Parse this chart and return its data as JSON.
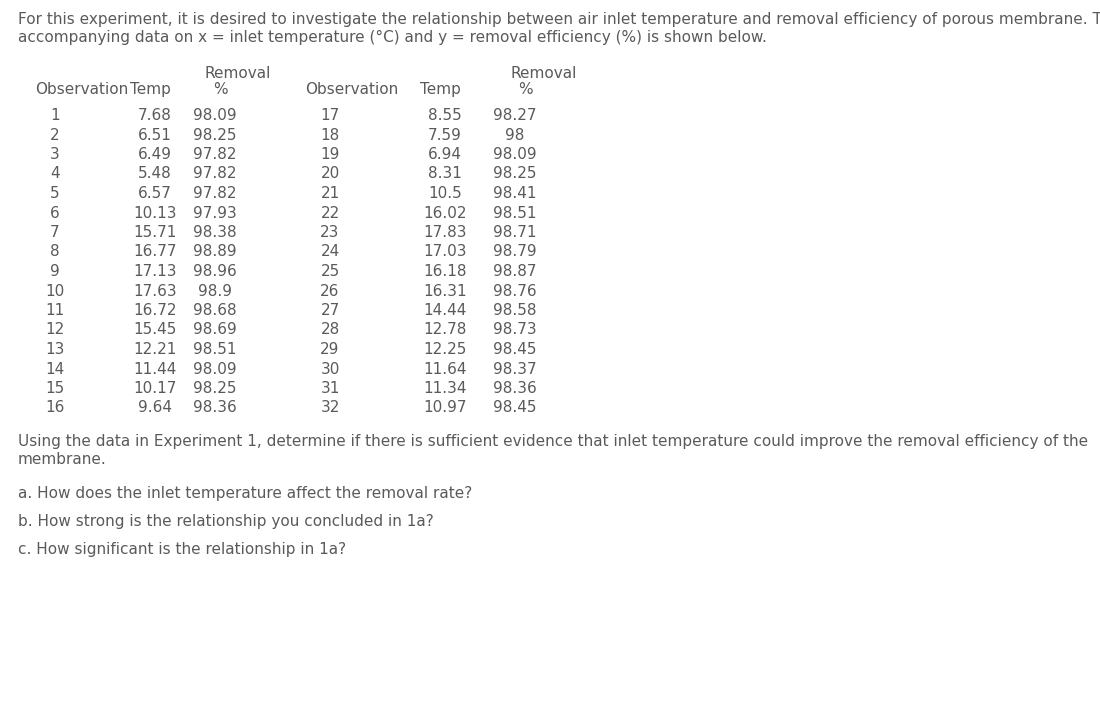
{
  "intro_text_line1": "For this experiment, it is desired to investigate the relationship between air inlet temperature and removal efficiency of porous membrane. The",
  "intro_text_line2": "accompanying data on x = inlet temperature (°C) and y = removal efficiency (%) is shown below.",
  "table_data_left": [
    [
      1,
      "7.68",
      "98.09"
    ],
    [
      2,
      "6.51",
      "98.25"
    ],
    [
      3,
      "6.49",
      "97.82"
    ],
    [
      4,
      "5.48",
      "97.82"
    ],
    [
      5,
      "6.57",
      "97.82"
    ],
    [
      6,
      "10.13",
      "97.93"
    ],
    [
      7,
      "15.71",
      "98.38"
    ],
    [
      8,
      "16.77",
      "98.89"
    ],
    [
      9,
      "17.13",
      "98.96"
    ],
    [
      10,
      "17.63",
      "98.9"
    ],
    [
      11,
      "16.72",
      "98.68"
    ],
    [
      12,
      "15.45",
      "98.69"
    ],
    [
      13,
      "12.21",
      "98.51"
    ],
    [
      14,
      "11.44",
      "98.09"
    ],
    [
      15,
      "10.17",
      "98.25"
    ],
    [
      16,
      "9.64",
      "98.36"
    ]
  ],
  "table_data_right": [
    [
      17,
      "8.55",
      "98.27"
    ],
    [
      18,
      "7.59",
      "98"
    ],
    [
      19,
      "6.94",
      "98.09"
    ],
    [
      20,
      "8.31",
      "98.25"
    ],
    [
      21,
      "10.5",
      "98.41"
    ],
    [
      22,
      "16.02",
      "98.51"
    ],
    [
      23,
      "17.83",
      "98.71"
    ],
    [
      24,
      "17.03",
      "98.79"
    ],
    [
      25,
      "16.18",
      "98.87"
    ],
    [
      26,
      "16.31",
      "98.76"
    ],
    [
      27,
      "14.44",
      "98.58"
    ],
    [
      28,
      "12.78",
      "98.73"
    ],
    [
      29,
      "12.25",
      "98.45"
    ],
    [
      30,
      "11.64",
      "98.37"
    ],
    [
      31,
      "11.34",
      "98.36"
    ],
    [
      32,
      "10.97",
      "98.45"
    ]
  ],
  "question_text_line1": "Using the data in Experiment 1, determine if there is sufficient evidence that inlet temperature could improve the removal efficiency of the",
  "question_text_line2": "membrane.",
  "questions": [
    "a. How does the inlet temperature affect the removal rate?",
    "b. How strong is the relationship you concluded in 1a?",
    "c. How significant is the relationship in 1a?"
  ],
  "text_color": "#5a5a5a",
  "bg_color": "#ffffff",
  "font_size": 11.0
}
